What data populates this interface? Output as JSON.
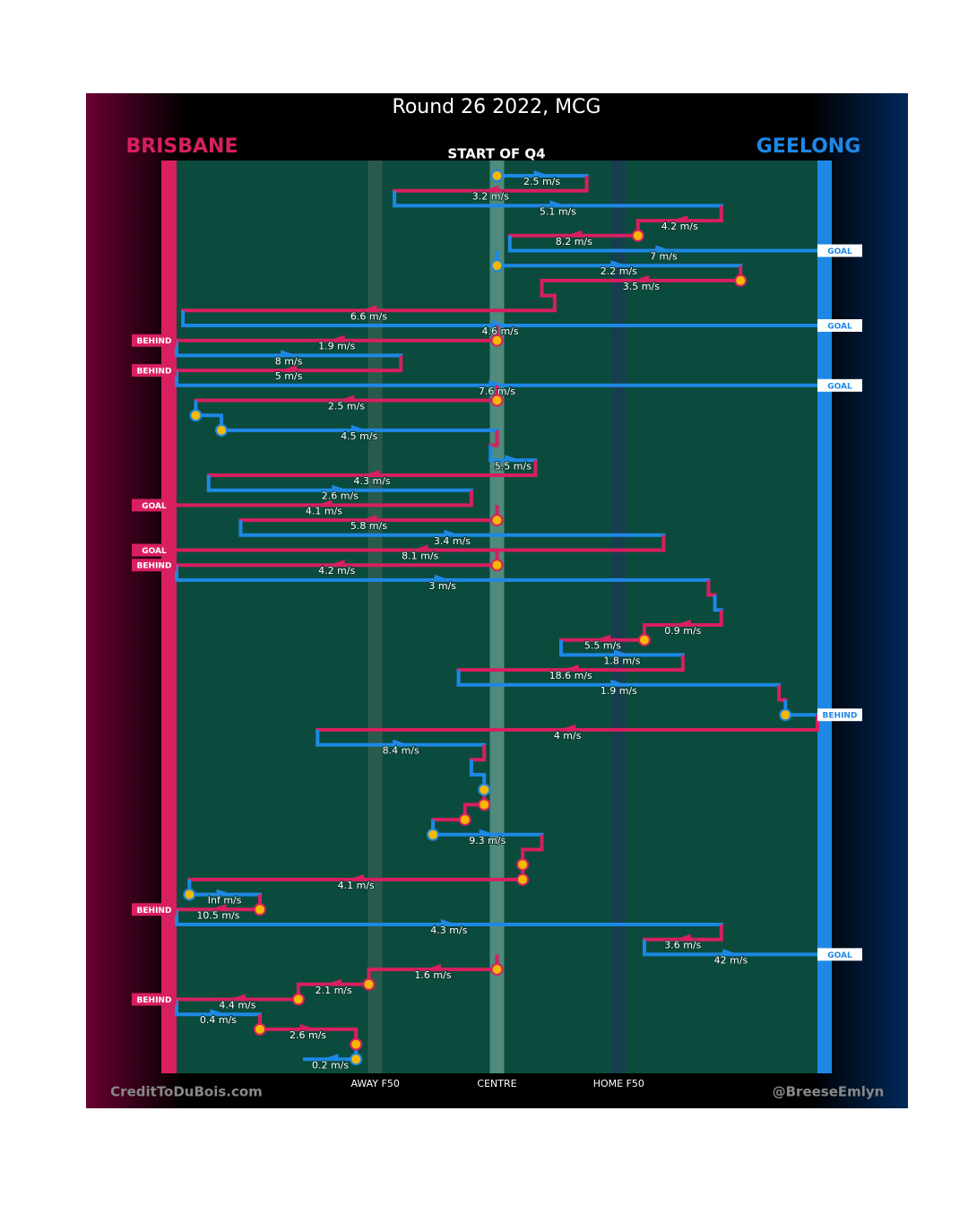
{
  "chart_data": {
    "type": "chain",
    "title": "Round 26 2022, MCG",
    "subtitle": "START OF Q4",
    "teams": [
      {
        "name": "BRISBANE",
        "color": "#d81f5f"
      },
      {
        "name": "GEELONG",
        "color": "#1e88e5"
      }
    ],
    "credits": [
      "CreditToDuBois.com",
      "@BreeseEmlyn"
    ],
    "xlim": [
      0,
      100
    ],
    "xticks": [
      {
        "value": 31,
        "label": "AWAY F50"
      },
      {
        "value": 50,
        "label": "CENTRE"
      },
      {
        "value": 69,
        "label": "HOME F50"
      }
    ],
    "moves": [
      {
        "team": 1,
        "from": 50,
        "to": 64,
        "label": "2.5 m/s",
        "contest": true
      },
      {
        "team": 0,
        "from": 64,
        "to": 34,
        "label": "3.2 m/s"
      },
      {
        "team": 1,
        "from": 34,
        "to": 85,
        "label": "5.1 m/s"
      },
      {
        "team": 0,
        "from": 85,
        "to": 72,
        "label": "4.2 m/s"
      },
      {
        "team": 0,
        "from": 72,
        "to": 52,
        "label": "8.2 m/s",
        "contest": true
      },
      {
        "team": 1,
        "from": 52,
        "to": 100,
        "label": "7 m/s",
        "result": "GOAL"
      },
      {
        "team": 1,
        "from": 50,
        "to": 88,
        "label": "2.2 m/s",
        "contest": true
      },
      {
        "team": 0,
        "from": 88,
        "to": 57,
        "label": "3.5 m/s",
        "contest": true
      },
      {
        "team": 0,
        "from": 57,
        "to": 59,
        "label": null
      },
      {
        "team": 0,
        "from": 59,
        "to": 1,
        "label": "6.6 m/s"
      },
      {
        "team": 1,
        "from": 1,
        "to": 100,
        "label": "4.6 m/s",
        "result": "GOAL"
      },
      {
        "team": 0,
        "from": 50,
        "to": 0,
        "label": "1.9 m/s",
        "contest": true,
        "result": "BEHIND"
      },
      {
        "team": 1,
        "from": 0,
        "to": 35,
        "label": "8 m/s"
      },
      {
        "team": 0,
        "from": 35,
        "to": 0,
        "label": "5 m/s",
        "result": "BEHIND"
      },
      {
        "team": 1,
        "from": 0,
        "to": 100,
        "label": "7.6 m/s",
        "result": "GOAL"
      },
      {
        "team": 0,
        "from": 50,
        "to": 3,
        "label": "2.5 m/s",
        "contest": true
      },
      {
        "team": 1,
        "from": 3,
        "to": 7,
        "label": null,
        "contest": true
      },
      {
        "team": 1,
        "from": 7,
        "to": 50,
        "label": "4.5 m/s",
        "contest": true
      },
      {
        "team": 0,
        "from": 50,
        "to": 49,
        "label": null
      },
      {
        "team": 1,
        "from": 49,
        "to": 56,
        "label": "5.5 m/s"
      },
      {
        "team": 0,
        "from": 56,
        "to": 5,
        "label": "4.3 m/s"
      },
      {
        "team": 1,
        "from": 5,
        "to": 46,
        "label": "2.6 m/s"
      },
      {
        "team": 0,
        "from": 46,
        "to": 0,
        "label": "4.1 m/s",
        "result": "GOAL"
      },
      {
        "team": 0,
        "from": 50,
        "to": 10,
        "label": "5.8 m/s",
        "contest": true
      },
      {
        "team": 1,
        "from": 10,
        "to": 76,
        "label": "3.4 m/s"
      },
      {
        "team": 0,
        "from": 76,
        "to": 0,
        "label": "8.1 m/s",
        "result": "GOAL"
      },
      {
        "team": 0,
        "from": 50,
        "to": 0,
        "label": "4.2 m/s",
        "contest": true,
        "result": "BEHIND"
      },
      {
        "team": 1,
        "from": 0,
        "to": 83,
        "label": "3 m/s"
      },
      {
        "team": 0,
        "from": 83,
        "to": 84,
        "label": null
      },
      {
        "team": 1,
        "from": 84,
        "to": 85,
        "label": null
      },
      {
        "team": 0,
        "from": 85,
        "to": 73,
        "label": "0.9 m/s"
      },
      {
        "team": 0,
        "from": 73,
        "to": 60,
        "label": "5.5 m/s",
        "contest": true
      },
      {
        "team": 1,
        "from": 60,
        "to": 79,
        "label": "1.8 m/s"
      },
      {
        "team": 0,
        "from": 79,
        "to": 44,
        "label": "18.6 m/s"
      },
      {
        "team": 1,
        "from": 44,
        "to": 94,
        "label": "1.9 m/s"
      },
      {
        "team": 0,
        "from": 94,
        "to": 95,
        "label": null
      },
      {
        "team": 1,
        "from": 95,
        "to": 100,
        "label": null,
        "contest": true,
        "result": "BEHIND"
      },
      {
        "team": 0,
        "from": 100,
        "to": 22,
        "label": "4 m/s"
      },
      {
        "team": 1,
        "from": 22,
        "to": 48,
        "label": "8.4 m/s"
      },
      {
        "team": 0,
        "from": 48,
        "to": 46,
        "label": null
      },
      {
        "team": 1,
        "from": 46,
        "to": 48,
        "label": null
      },
      {
        "team": 1,
        "from": 48,
        "to": 48,
        "label": null,
        "contest": true
      },
      {
        "team": 0,
        "from": 48,
        "to": 45,
        "label": null,
        "contest": true
      },
      {
        "team": 0,
        "from": 45,
        "to": 40,
        "label": null,
        "contest": true
      },
      {
        "team": 1,
        "from": 40,
        "to": 57,
        "label": "9.3 m/s",
        "contest": true
      },
      {
        "team": 0,
        "from": 57,
        "to": 54,
        "label": null
      },
      {
        "team": 0,
        "from": 54,
        "to": 54,
        "label": null,
        "contest": true
      },
      {
        "team": 0,
        "from": 54,
        "to": 2,
        "label": "4.1 m/s",
        "contest": true
      },
      {
        "team": 1,
        "from": 2,
        "to": 13,
        "label": "Inf m/s",
        "contest": true
      },
      {
        "team": 0,
        "from": 13,
        "to": 0,
        "label": "10.5 m/s",
        "contest": true,
        "result": "BEHIND"
      },
      {
        "team": 1,
        "from": 0,
        "to": 85,
        "label": "4.3 m/s"
      },
      {
        "team": 0,
        "from": 85,
        "to": 73,
        "label": "3.6 m/s"
      },
      {
        "team": 1,
        "from": 73,
        "to": 100,
        "label": "42 m/s",
        "result": "GOAL"
      },
      {
        "team": 0,
        "from": 50,
        "to": 30,
        "label": "1.6 m/s",
        "contest": true
      },
      {
        "team": 0,
        "from": 30,
        "to": 19,
        "label": "2.1 m/s",
        "contest": true
      },
      {
        "team": 0,
        "from": 19,
        "to": 0,
        "label": "4.4 m/s",
        "contest": true,
        "result": "BEHIND"
      },
      {
        "team": 1,
        "from": 0,
        "to": 13,
        "label": "0.4 m/s"
      },
      {
        "team": 0,
        "from": 13,
        "to": 28,
        "label": "2.6 m/s",
        "contest": true
      },
      {
        "team": 0,
        "from": 28,
        "to": 28,
        "label": null,
        "contest": true
      },
      {
        "team": 1,
        "from": 28,
        "to": 20,
        "label": "0.2 m/s",
        "contest": true
      }
    ]
  }
}
